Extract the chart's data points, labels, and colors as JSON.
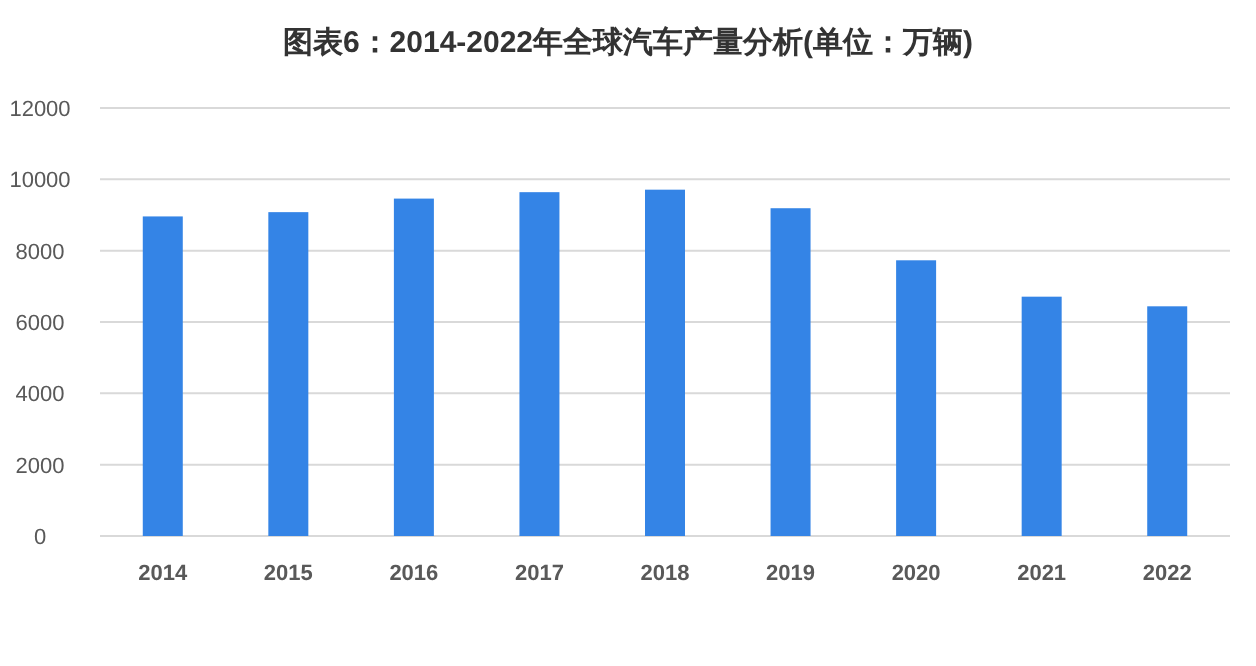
{
  "chart_data": {
    "type": "bar",
    "title": "图表6：2014-2022年全球汽车产量分析(单位：万辆)",
    "categories": [
      "2014",
      "2015",
      "2016",
      "2017",
      "2018",
      "2019",
      "2020",
      "2021",
      "2022"
    ],
    "values": [
      8960,
      9080,
      9460,
      9640,
      9710,
      9190,
      7730,
      6710,
      6440
    ],
    "color": "#3484e6",
    "ylim": [
      0,
      12000
    ],
    "yticks": [
      0,
      2000,
      4000,
      6000,
      8000,
      10000,
      12000
    ],
    "grid": "y"
  }
}
